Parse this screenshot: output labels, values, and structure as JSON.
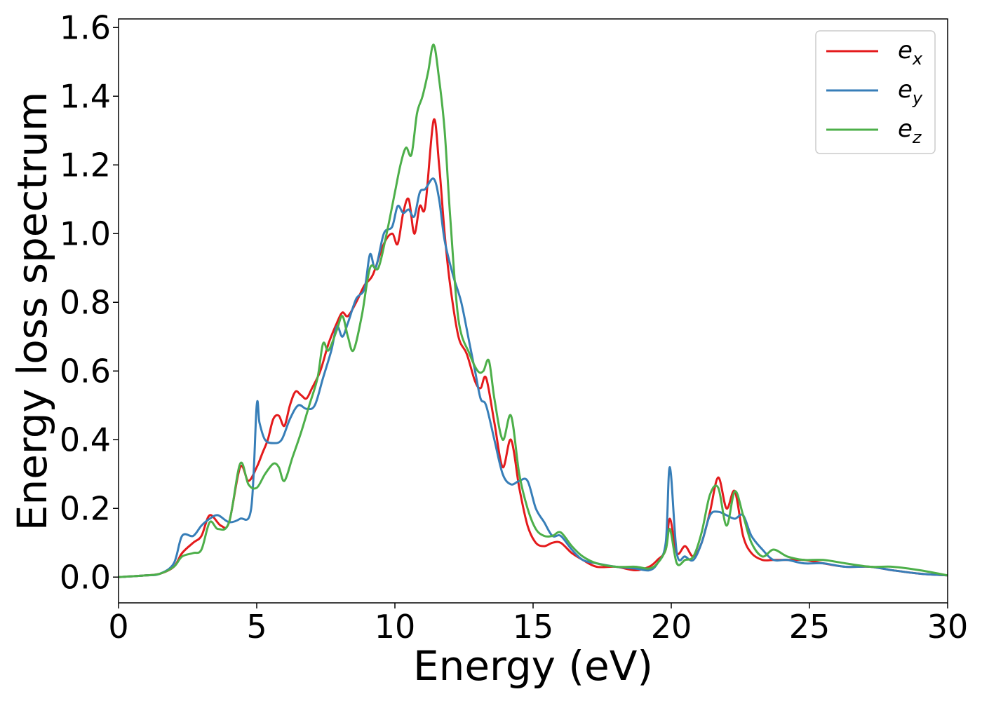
{
  "chart_data": {
    "type": "line",
    "title": "",
    "xlabel": "Energy (eV)",
    "ylabel": "Energy loss spectrum",
    "xlim": [
      0,
      30
    ],
    "ylim": [
      -0.075,
      1.625
    ],
    "xticks": [
      "0",
      "5",
      "10",
      "15",
      "20",
      "25",
      "30"
    ],
    "xtick_values": [
      0,
      5,
      10,
      15,
      20,
      25,
      30
    ],
    "yticks": [
      "0.0",
      "0.2",
      "0.4",
      "0.6",
      "0.8",
      "1.0",
      "1.2",
      "1.4",
      "1.6"
    ],
    "ytick_values": [
      0.0,
      0.2,
      0.4,
      0.6,
      0.8,
      1.0,
      1.2,
      1.4,
      1.6
    ],
    "grid": false,
    "legend_position": "top-right",
    "series": [
      {
        "name": "e",
        "subscript": "x",
        "color": "#e41a1c",
        "x": [
          0,
          1,
          1.5,
          2,
          2.3,
          2.7,
          3,
          3.3,
          3.7,
          4,
          4.4,
          4.7,
          5,
          5.2,
          5.4,
          5.6,
          5.8,
          6,
          6.2,
          6.4,
          6.6,
          6.8,
          7,
          7.3,
          7.6,
          7.9,
          8.1,
          8.3,
          8.6,
          8.9,
          9.2,
          9.6,
          9.9,
          10.1,
          10.3,
          10.5,
          10.7,
          10.9,
          11.1,
          11.4,
          11.6,
          11.8,
          12,
          12.3,
          12.6,
          12.9,
          13.1,
          13.3,
          13.6,
          13.9,
          14.2,
          14.5,
          14.8,
          15.1,
          15.4,
          15.7,
          16,
          16.4,
          16.8,
          17.3,
          18,
          18.7,
          19.2,
          19.5,
          19.8,
          19.95,
          20.2,
          20.5,
          20.8,
          21.1,
          21.4,
          21.7,
          22,
          22.3,
          22.6,
          22.9,
          23.3,
          23.7,
          24.2,
          24.8,
          25.5,
          26.3,
          27.2,
          28,
          29,
          30
        ],
        "y": [
          0,
          0.005,
          0.01,
          0.03,
          0.07,
          0.1,
          0.12,
          0.18,
          0.15,
          0.16,
          0.32,
          0.28,
          0.32,
          0.36,
          0.4,
          0.46,
          0.47,
          0.44,
          0.5,
          0.54,
          0.53,
          0.52,
          0.55,
          0.6,
          0.68,
          0.74,
          0.77,
          0.76,
          0.8,
          0.85,
          0.88,
          0.97,
          1.0,
          0.97,
          1.06,
          1.1,
          1.0,
          1.08,
          1.08,
          1.33,
          1.2,
          1.0,
          0.85,
          0.7,
          0.65,
          0.57,
          0.55,
          0.58,
          0.45,
          0.32,
          0.4,
          0.26,
          0.15,
          0.1,
          0.09,
          0.1,
          0.1,
          0.07,
          0.05,
          0.03,
          0.03,
          0.02,
          0.03,
          0.05,
          0.08,
          0.17,
          0.07,
          0.09,
          0.06,
          0.1,
          0.19,
          0.29,
          0.2,
          0.25,
          0.12,
          0.07,
          0.05,
          0.05,
          0.05,
          0.05,
          0.04,
          0.03,
          0.03,
          0.02,
          0.01,
          0.005
        ]
      },
      {
        "name": "e",
        "subscript": "y",
        "color": "#377eb8",
        "x": [
          0,
          1,
          1.5,
          2,
          2.3,
          2.7,
          3,
          3.3,
          3.6,
          4,
          4.4,
          4.8,
          5,
          5.1,
          5.3,
          5.6,
          5.9,
          6.2,
          6.5,
          6.8,
          7.1,
          7.4,
          7.7,
          7.9,
          8.1,
          8.3,
          8.6,
          8.9,
          9.1,
          9.3,
          9.6,
          9.9,
          10.1,
          10.3,
          10.5,
          10.7,
          10.9,
          11.1,
          11.4,
          11.6,
          11.8,
          12.1,
          12.4,
          12.7,
          12.9,
          13.1,
          13.3,
          13.6,
          13.9,
          14.2,
          14.5,
          14.8,
          15.1,
          15.4,
          15.7,
          16,
          16.4,
          16.8,
          17.3,
          18,
          18.7,
          19.2,
          19.5,
          19.8,
          19.95,
          20.2,
          20.5,
          20.8,
          21.1,
          21.4,
          21.7,
          22,
          22.3,
          22.6,
          22.9,
          23.3,
          23.7,
          24.2,
          24.8,
          25.5,
          26.3,
          27.2,
          28,
          29,
          30
        ],
        "y": [
          0,
          0.005,
          0.01,
          0.04,
          0.12,
          0.12,
          0.15,
          0.17,
          0.18,
          0.16,
          0.17,
          0.2,
          0.5,
          0.45,
          0.4,
          0.39,
          0.4,
          0.46,
          0.5,
          0.49,
          0.5,
          0.58,
          0.66,
          0.73,
          0.7,
          0.74,
          0.81,
          0.84,
          0.94,
          0.9,
          1.0,
          1.02,
          1.08,
          1.06,
          1.07,
          1.05,
          1.12,
          1.13,
          1.16,
          1.1,
          0.98,
          0.88,
          0.8,
          0.68,
          0.6,
          0.52,
          0.5,
          0.4,
          0.3,
          0.27,
          0.28,
          0.28,
          0.2,
          0.16,
          0.12,
          0.12,
          0.08,
          0.05,
          0.04,
          0.03,
          0.025,
          0.02,
          0.04,
          0.1,
          0.32,
          0.07,
          0.06,
          0.05,
          0.1,
          0.18,
          0.19,
          0.18,
          0.17,
          0.18,
          0.12,
          0.08,
          0.05,
          0.05,
          0.04,
          0.04,
          0.03,
          0.03,
          0.02,
          0.01,
          0.005
        ]
      },
      {
        "name": "e",
        "subscript": "z",
        "color": "#4daf4a",
        "x": [
          0,
          1,
          1.5,
          2,
          2.3,
          2.7,
          3,
          3.3,
          3.6,
          4,
          4.4,
          4.7,
          5,
          5.3,
          5.6,
          5.8,
          6,
          6.3,
          6.6,
          6.9,
          7.2,
          7.4,
          7.6,
          7.9,
          8.1,
          8.3,
          8.5,
          8.8,
          9.1,
          9.4,
          9.7,
          10,
          10.2,
          10.4,
          10.6,
          10.8,
          11,
          11.2,
          11.4,
          11.6,
          11.8,
          12,
          12.3,
          12.7,
          13,
          13.2,
          13.4,
          13.6,
          13.9,
          14.2,
          14.5,
          14.8,
          15.1,
          15.4,
          15.7,
          16,
          16.4,
          16.8,
          17.3,
          18,
          18.7,
          19.2,
          19.5,
          19.8,
          19.95,
          20.2,
          20.5,
          20.8,
          21.1,
          21.4,
          21.7,
          22,
          22.3,
          22.6,
          22.9,
          23.3,
          23.7,
          24.2,
          24.8,
          25.5,
          26.3,
          27.2,
          28,
          29,
          30
        ],
        "y": [
          0,
          0.005,
          0.01,
          0.03,
          0.06,
          0.07,
          0.08,
          0.16,
          0.14,
          0.16,
          0.33,
          0.27,
          0.26,
          0.3,
          0.33,
          0.32,
          0.28,
          0.35,
          0.42,
          0.5,
          0.58,
          0.68,
          0.66,
          0.72,
          0.76,
          0.7,
          0.66,
          0.76,
          0.9,
          0.9,
          1.0,
          1.12,
          1.2,
          1.25,
          1.23,
          1.35,
          1.4,
          1.47,
          1.55,
          1.45,
          1.3,
          1.05,
          0.75,
          0.65,
          0.6,
          0.6,
          0.63,
          0.52,
          0.4,
          0.47,
          0.3,
          0.2,
          0.14,
          0.12,
          0.12,
          0.13,
          0.09,
          0.06,
          0.04,
          0.03,
          0.03,
          0.025,
          0.04,
          0.08,
          0.14,
          0.04,
          0.05,
          0.06,
          0.13,
          0.24,
          0.26,
          0.15,
          0.25,
          0.18,
          0.1,
          0.06,
          0.08,
          0.06,
          0.05,
          0.05,
          0.04,
          0.03,
          0.03,
          0.02,
          0.005
        ]
      }
    ]
  }
}
